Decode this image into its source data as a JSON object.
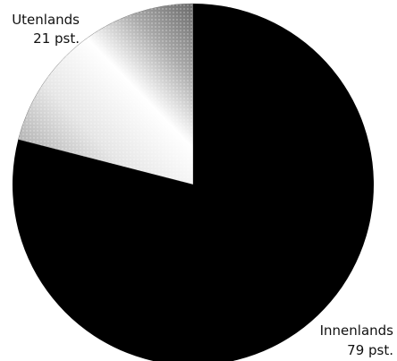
{
  "chart_data": {
    "type": "pie",
    "slices": [
      {
        "label": "Utenlands",
        "value": 21,
        "value_label": "21 pst."
      },
      {
        "label": "Innenlands",
        "value": 79,
        "value_label": "79 pst."
      }
    ],
    "title": "",
    "legend": "none",
    "colors": {
      "Utenlands": "#bdbdbd",
      "Innenlands": "#000000"
    }
  }
}
